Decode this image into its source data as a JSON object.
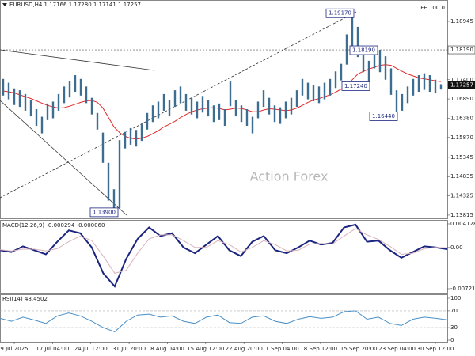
{
  "chart_data": [
    {
      "type": "ohlc",
      "title": "EURUSD,H4 1.17166 1.17280 1.17141 1.17257",
      "corner_text": "FE 100.0",
      "watermark": "Action Forex",
      "high": [
        1.1742,
        1.1732,
        1.1717,
        1.1712,
        1.1702,
        1.1687,
        1.1662,
        1.1642,
        1.1677,
        1.1682,
        1.1702,
        1.1722,
        1.1737,
        1.1752,
        1.1742,
        1.1722,
        1.1692,
        1.1652,
        1.16,
        1.152,
        1.145,
        1.158,
        1.1602,
        1.1612,
        1.1607,
        1.1622,
        1.1652,
        1.1672,
        1.1682,
        1.1702,
        1.1687,
        1.1712,
        1.1722,
        1.1702,
        1.1692,
        1.1682,
        1.1697,
        1.1687,
        1.1672,
        1.1677,
        1.1662,
        1.1735,
        1.1687,
        1.1672,
        1.1662,
        1.1642,
        1.1682,
        1.1712,
        1.1692,
        1.1672,
        1.1667,
        1.1682,
        1.1692,
        1.1712,
        1.1742,
        1.1732,
        1.1727,
        1.1722,
        1.1732,
        1.1742,
        1.1762,
        1.1782,
        1.186,
        1.1917,
        1.188,
        1.1812,
        1.179,
        1.1822,
        1.1819,
        1.1802,
        1.177,
        1.1712,
        1.1702,
        1.1722,
        1.1742,
        1.1752,
        1.1757,
        1.1752,
        1.174,
        1.1728
      ],
      "low": [
        1.1698,
        1.1688,
        1.1673,
        1.1668,
        1.1658,
        1.1643,
        1.1618,
        1.1598,
        1.1633,
        1.1638,
        1.1658,
        1.1678,
        1.1693,
        1.1708,
        1.1698,
        1.1678,
        1.1648,
        1.1608,
        1.152,
        1.142,
        1.139,
        1.14,
        1.1558,
        1.1568,
        1.1563,
        1.1578,
        1.1608,
        1.1628,
        1.1638,
        1.1658,
        1.1643,
        1.1668,
        1.1678,
        1.1658,
        1.1648,
        1.1638,
        1.1653,
        1.1643,
        1.1628,
        1.1633,
        1.1618,
        1.167,
        1.1643,
        1.1628,
        1.1618,
        1.1598,
        1.1638,
        1.1668,
        1.1648,
        1.1628,
        1.1623,
        1.1638,
        1.1648,
        1.1668,
        1.1698,
        1.1688,
        1.1683,
        1.1678,
        1.1688,
        1.1698,
        1.1718,
        1.1738,
        1.178,
        1.182,
        1.18,
        1.176,
        1.173,
        1.177,
        1.176,
        1.174,
        1.17,
        1.1644,
        1.1658,
        1.1678,
        1.1698,
        1.1708,
        1.1713,
        1.1708,
        1.1705,
        1.1714
      ],
      "ma": [
        1.171,
        1.1708,
        1.1705,
        1.17,
        1.1695,
        1.169,
        1.1684,
        1.1678,
        1.1672,
        1.1668,
        1.1665,
        1.1666,
        1.167,
        1.1675,
        1.168,
        1.1684,
        1.1685,
        1.168,
        1.1665,
        1.164,
        1.1615,
        1.16,
        1.159,
        1.1585,
        1.1583,
        1.1585,
        1.159,
        1.1597,
        1.1605,
        1.1615,
        1.1622,
        1.163,
        1.164,
        1.1648,
        1.1655,
        1.166,
        1.1663,
        1.1665,
        1.1666,
        1.1664,
        1.166,
        1.1662,
        1.1665,
        1.1664,
        1.166,
        1.1655,
        1.1655,
        1.166,
        1.1663,
        1.1662,
        1.166,
        1.1658,
        1.166,
        1.1665,
        1.1672,
        1.168,
        1.1686,
        1.169,
        1.1695,
        1.17,
        1.1707,
        1.1715,
        1.1725,
        1.174,
        1.1755,
        1.1762,
        1.1768,
        1.1773,
        1.1778,
        1.178,
        1.1778,
        1.177,
        1.1762,
        1.1755,
        1.175,
        1.1745,
        1.1742,
        1.174,
        1.1737,
        1.1735
      ],
      "color": "#3d6d91",
      "ma_color": "#e02a2a",
      "ylim": [
        1.1373,
        1.1951
      ],
      "yticks": [
        1.18945,
        {
          "value": 1.174,
          "label": "1.17400"
        },
        {
          "value": 1.1689,
          "label": "1.16890"
        },
        {
          "value": 1.1638,
          "label": "1.16380"
        },
        {
          "value": 1.1587,
          "label": "1.15870"
        },
        1.15345,
        1.14835,
        1.14325,
        1.13815
      ],
      "level": {
        "value": 1.1819,
        "label": "1.18190"
      },
      "last": 1.17257,
      "annotations": [
        {
          "value": 1.1917,
          "label": "1.19170"
        },
        {
          "value": 1.1819,
          "label": "1.18190"
        },
        {
          "value": 1.1724,
          "label": "1.17240"
        },
        {
          "value": 1.1644,
          "label": "1.16440"
        },
        {
          "value": 1.139,
          "label": "1.13900"
        }
      ],
      "grid": false
    },
    {
      "type": "lines",
      "title": "MACD(12,26,9) -0.000294 -0.000060",
      "lines": [
        [
          -0.0005,
          -0.0008,
          0.0002,
          -0.0005,
          -0.0012,
          0.001,
          0.003,
          0.0025,
          0,
          -0.0045,
          -0.0068,
          -0.002,
          0.0015,
          0.0035,
          0.002,
          0.0025,
          0,
          -0.001,
          0.0005,
          0.002,
          -0.0005,
          -0.0015,
          0.001,
          0.002,
          -0.0005,
          -0.001,
          0,
          0.0012,
          0.0005,
          0.0008,
          0.0035,
          0.004,
          0.001,
          0.0012,
          -0.0005,
          -0.0018,
          -0.0008,
          0.0002,
          0,
          -0.000294
        ],
        [
          -0.0004,
          -0.0006,
          -0.0003,
          -0.0003,
          -0.0006,
          -0.0002,
          0.001,
          0.002,
          0.0012,
          -0.0015,
          -0.0045,
          -0.004,
          -0.001,
          0.0015,
          0.0022,
          0.0022,
          0.0012,
          0,
          0,
          0.0012,
          0.0005,
          -0.0008,
          0,
          0.0012,
          0.0005,
          -0.0006,
          -0.0005,
          0.0006,
          0.0007,
          0.0006,
          0.002,
          0.0033,
          0.0022,
          0.0014,
          0.0002,
          -0.0012,
          -0.001,
          -0.0002,
          0,
          -6e-05
        ]
      ],
      "colors": [
        "#1c2580",
        "#d9b3ba"
      ],
      "widths": [
        2,
        1
      ],
      "ylim": [
        -0.00791,
        0.00482
      ],
      "yticks": [
        0.004128,
        {
          "value": 0,
          "label": "0.00"
        },
        -0.007216
      ],
      "grid": false
    },
    {
      "type": "lines",
      "title": "RSI(14) 48.4502",
      "lines": [
        [
          52,
          45,
          55,
          48,
          40,
          58,
          65,
          58,
          45,
          30,
          20,
          45,
          60,
          62,
          55,
          58,
          45,
          40,
          55,
          60,
          42,
          40,
          55,
          58,
          45,
          40,
          50,
          56,
          52,
          55,
          68,
          70,
          50,
          55,
          40,
          35,
          50,
          55,
          52,
          48.4502
        ]
      ],
      "colors": [
        "#4a90c8"
      ],
      "widths": [
        1
      ],
      "ylim": [
        0,
        100
      ],
      "yticks": [
        100,
        70,
        30,
        0
      ],
      "grid": true,
      "x_labels": [
        "9 Jul 2025",
        "17 Jul 04:00",
        "24 Jul 12:00",
        "31 Jul 20:00",
        "8 Aug 04:00",
        "15 Aug 12:00",
        "22 Aug 20:00",
        "1 Sep 04:00",
        "8 Sep 12:00",
        "15 Sep 20:00",
        "23 Sep 04:00",
        "30 Sep 12:00"
      ]
    }
  ]
}
